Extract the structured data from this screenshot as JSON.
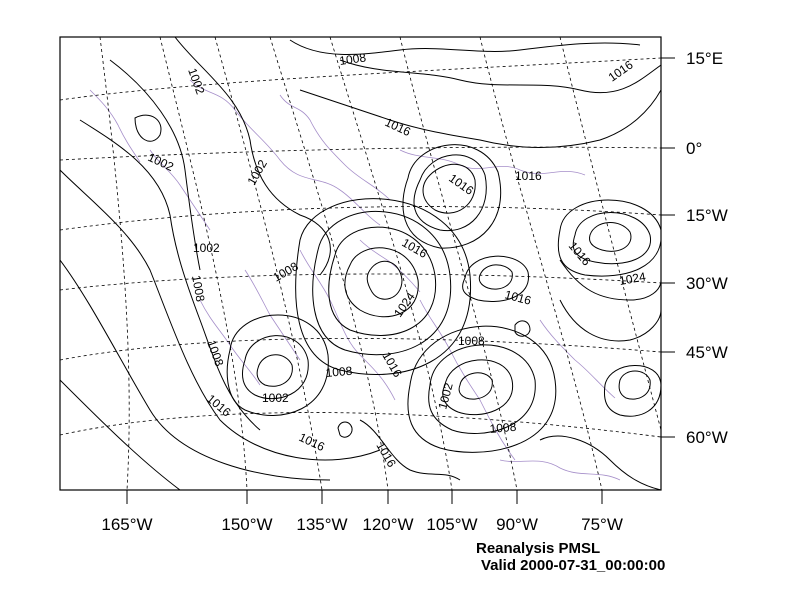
{
  "map": {
    "right_axis_labels": [
      "15°E",
      "0°",
      "15°W",
      "30°W",
      "45°W",
      "60°W"
    ],
    "bottom_axis_labels": [
      "165°W",
      "150°W",
      "135°W",
      "120°W",
      "105°W",
      "90°W",
      "75°W"
    ],
    "isobar_labels": [
      "1002",
      "1008",
      "1016",
      "1016",
      "1016",
      "1002",
      "1002",
      "1002",
      "1008",
      "1008",
      "1016",
      "1016",
      "1016",
      "1024",
      "1016",
      "1024",
      "1016",
      "1008",
      "1002",
      "1008",
      "1008",
      "1016",
      "1016",
      "1016",
      "1002",
      "1008"
    ]
  },
  "footer": {
    "title": "Reanalysis PMSL",
    "valid": "Valid 2000-07-31_00:00:00"
  },
  "colors": {
    "frame": "#000000",
    "contour": "#000000",
    "graticule": "#000000",
    "coastline": "#a58ec9"
  }
}
